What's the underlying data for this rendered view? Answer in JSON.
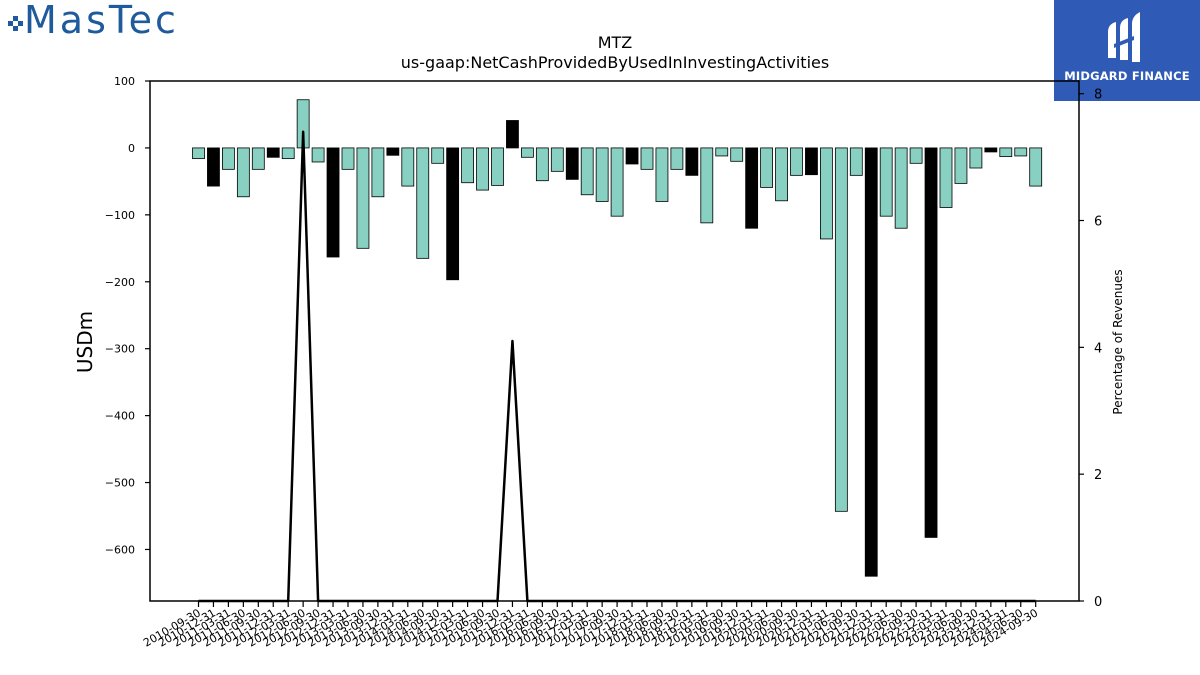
{
  "logos": {
    "left_wordmark": "MasTec",
    "right_brand": "MIDGARD FINANCE"
  },
  "colors": {
    "bar_primary": "#88d1c2",
    "bar_highlight": "#000000",
    "line": "#000000",
    "brand_blue": "#1e5a9c",
    "badge_blue": "#2f5bb7"
  },
  "chart_data": {
    "type": "bar",
    "title": "MTZ",
    "subtitle": "us-gaap:NetCashProvidedByUsedInInvestingActivities",
    "ylabel": "USDm",
    "y2label": "Percentage of Revenues",
    "ylim": [
      -677,
      100
    ],
    "y2lim": [
      0,
      8.2
    ],
    "yticks": [
      100,
      0,
      -100,
      -200,
      -300,
      -400,
      -500,
      -600
    ],
    "y2ticks": [
      0,
      2,
      4,
      6,
      8
    ],
    "grid": false,
    "categories": [
      "2010-09-30",
      "2010-12-31",
      "2011-03-31",
      "2011-06-30",
      "2011-09-30",
      "2011-12-31",
      "2012-03-31",
      "2012-06-30",
      "2012-09-30",
      "2012-12-31",
      "2013-03-31",
      "2013-06-30",
      "2013-09-30",
      "2013-12-31",
      "2014-03-31",
      "2014-06-30",
      "2014-09-30",
      "2014-12-31",
      "2015-03-31",
      "2015-06-30",
      "2015-09-30",
      "2015-12-31",
      "2016-03-31",
      "2016-06-30",
      "2016-09-30",
      "2016-12-31",
      "2017-03-31",
      "2017-06-30",
      "2017-09-30",
      "2017-12-31",
      "2018-03-31",
      "2018-06-30",
      "2018-09-30",
      "2018-12-31",
      "2019-03-31",
      "2019-06-30",
      "2019-09-30",
      "2019-12-31",
      "2020-03-31",
      "2020-06-30",
      "2020-09-30",
      "2020-12-31",
      "2021-03-31",
      "2021-06-30",
      "2021-09-30",
      "2021-12-31",
      "2022-03-31",
      "2022-06-30",
      "2022-09-30",
      "2022-12-31",
      "2023-03-31",
      "2023-06-30",
      "2023-09-30",
      "2023-12-31",
      "2024-03-31",
      "2024-06-30",
      "2024-09-30"
    ],
    "tick_labels": [
      "2010-09-30",
      "2010-12-31",
      "2011-03-31",
      "2011-06-30",
      "2011-09-30",
      "2011-12-31",
      "2012-03-31",
      "2012-06-30",
      "2012-09-30",
      "2012-12-31",
      "2013-03-31",
      "2013-06-30",
      "2013-09-30",
      "2013-12-31",
      "2014-03-31",
      "2014-06-30",
      "2014-09-30",
      "2014-12-31",
      "2015-03-31",
      "2015-06-30",
      "2015-09-30",
      "2015-12-31",
      "2016-03-31",
      "2016-06-30",
      "2016-09-30",
      "2016-12-31",
      "2017-03-31",
      "2017-06-30",
      "2017-09-30",
      "2017-12-31",
      "2018-03-31",
      "2018-06-30",
      "2018-09-30",
      "2018-12-31",
      "2019-03-31",
      "2019-06-30",
      "2019-09-30",
      "2019-12-31",
      "2020-03-31",
      "2020-06-30",
      "2020-09-30",
      "2020-12-31",
      "2021-03-31",
      "2021-06-30",
      "2021-09-30",
      "2021-12-31",
      "2022-03-31",
      "2022-06-30",
      "2022-09-30",
      "2022-12-31",
      "2023-03-31",
      "2023-06-30",
      "2023-09-30",
      "2023-12-31",
      "2024-03-31",
      "2024-06-30",
      "2024-09-30"
    ],
    "values": [
      -16,
      -57,
      -32,
      -73,
      -32,
      -14,
      -16,
      72,
      -21,
      -163,
      -32,
      -150,
      -73,
      -11,
      -57,
      -165,
      -23,
      -197,
      -52,
      -63,
      -56,
      41,
      -14,
      -49,
      -35,
      -47,
      -70,
      -80,
      -102,
      -24,
      -32,
      -80,
      -32,
      -41,
      -112,
      -12,
      -20,
      -120,
      -59,
      -79,
      -41,
      -40,
      -136,
      -543,
      -41,
      -640,
      -102,
      -120,
      -23,
      -582,
      -89,
      -53,
      -30,
      -6,
      -13,
      -12,
      -57
    ],
    "highlight": [
      false,
      true,
      false,
      false,
      false,
      true,
      false,
      false,
      false,
      true,
      false,
      false,
      false,
      true,
      false,
      false,
      false,
      true,
      false,
      false,
      false,
      true,
      false,
      false,
      false,
      true,
      false,
      false,
      false,
      true,
      false,
      false,
      false,
      true,
      false,
      false,
      false,
      true,
      false,
      false,
      false,
      true,
      false,
      false,
      false,
      true,
      false,
      false,
      false,
      true,
      false,
      false,
      false,
      true,
      false,
      false,
      false
    ],
    "line_series": {
      "axis": "right",
      "values": [
        0,
        0,
        0,
        0,
        0,
        0,
        0,
        7.4,
        0,
        0,
        0,
        0,
        0,
        0,
        0,
        0,
        0,
        0,
        0,
        0,
        0,
        4.1,
        0,
        0,
        0,
        0,
        0,
        0,
        0,
        0,
        0,
        0,
        0,
        0,
        0,
        0,
        0,
        0,
        0,
        0,
        0,
        0,
        0,
        0,
        0,
        0,
        0,
        0,
        0,
        0,
        0,
        0,
        0,
        0,
        0,
        0,
        0
      ]
    }
  }
}
